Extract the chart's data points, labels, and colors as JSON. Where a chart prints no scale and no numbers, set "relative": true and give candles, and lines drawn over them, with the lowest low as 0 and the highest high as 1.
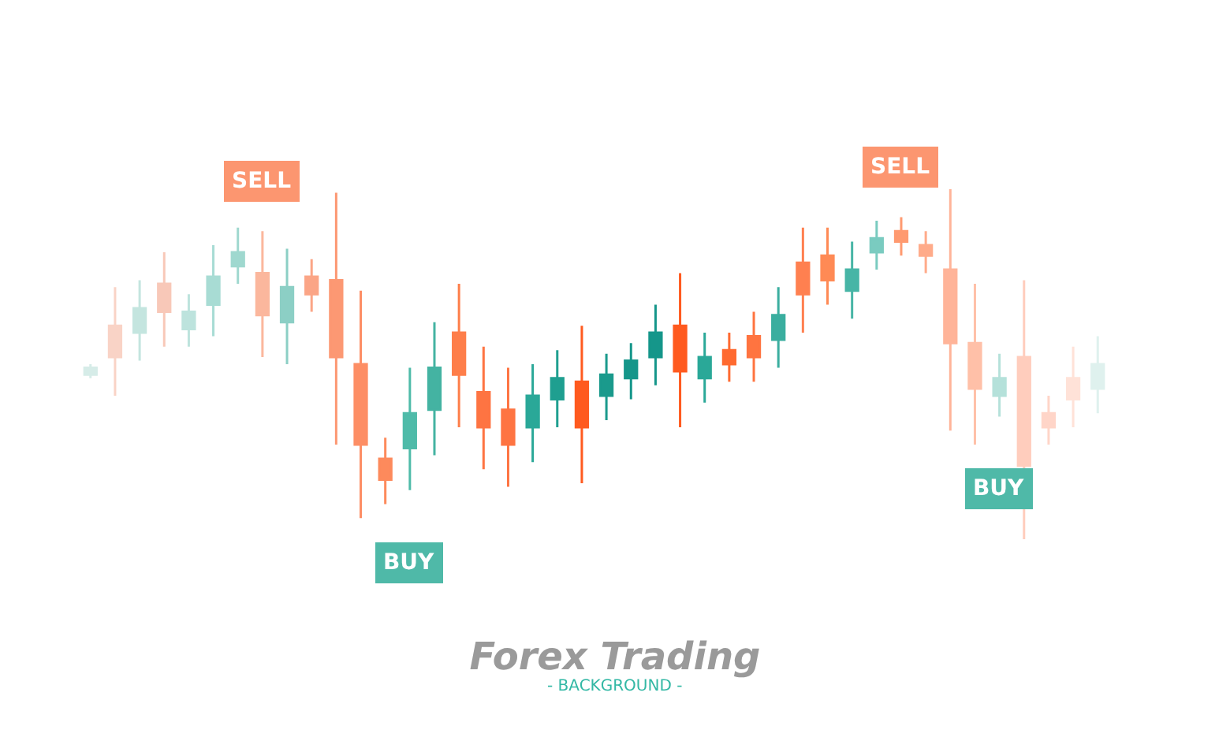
{
  "chart_data": {
    "type": "candlestick",
    "title": "Forex Trading",
    "subtitle": "- BACKGROUND -",
    "relative": true,
    "categories": [
      null,
      null,
      null,
      null,
      null,
      null,
      null,
      null,
      null,
      null,
      null,
      null,
      null,
      null,
      null,
      null,
      null,
      null,
      null,
      null,
      null,
      null,
      null,
      null,
      null,
      null,
      null,
      null,
      null,
      null,
      null,
      null,
      null,
      null,
      null,
      null,
      null,
      null,
      null,
      null,
      null,
      null
    ],
    "ohlc": [
      [
        0.47,
        0.5,
        0.46,
        0.49
      ],
      [
        0.61,
        0.72,
        0.41,
        0.52
      ],
      [
        0.59,
        0.74,
        0.51,
        0.66
      ],
      [
        0.73,
        0.82,
        0.55,
        0.65
      ],
      [
        0.6,
        0.7,
        0.55,
        0.65
      ],
      [
        0.67,
        0.84,
        0.58,
        0.75
      ],
      [
        0.78,
        0.89,
        0.73,
        0.82
      ],
      [
        0.76,
        0.88,
        0.52,
        0.64
      ],
      [
        0.62,
        0.83,
        0.5,
        0.72
      ],
      [
        0.75,
        0.8,
        0.65,
        0.7
      ],
      [
        0.74,
        0.99,
        0.27,
        0.52
      ],
      [
        0.5,
        0.71,
        0.06,
        0.27
      ],
      [
        0.23,
        0.29,
        0.1,
        0.17
      ],
      [
        0.26,
        0.49,
        0.14,
        0.36
      ],
      [
        0.37,
        0.62,
        0.24,
        0.49
      ],
      [
        0.59,
        0.73,
        0.32,
        0.47
      ],
      [
        0.42,
        0.55,
        0.2,
        0.32
      ],
      [
        0.37,
        0.49,
        0.15,
        0.27
      ],
      [
        0.32,
        0.5,
        0.22,
        0.41
      ],
      [
        0.4,
        0.54,
        0.32,
        0.46
      ],
      [
        0.45,
        0.61,
        0.16,
        0.32
      ],
      [
        0.41,
        0.53,
        0.34,
        0.47
      ],
      [
        0.46,
        0.56,
        0.4,
        0.51
      ],
      [
        0.52,
        0.67,
        0.44,
        0.59
      ],
      [
        0.61,
        0.76,
        0.32,
        0.48
      ],
      [
        0.46,
        0.59,
        0.39,
        0.52
      ],
      [
        0.54,
        0.59,
        0.45,
        0.5
      ],
      [
        0.58,
        0.65,
        0.45,
        0.52
      ],
      [
        0.57,
        0.72,
        0.49,
        0.64
      ],
      [
        0.79,
        0.89,
        0.59,
        0.7
      ],
      [
        0.81,
        0.89,
        0.67,
        0.74
      ],
      [
        0.71,
        0.85,
        0.63,
        0.77
      ],
      [
        0.82,
        0.91,
        0.77,
        0.86
      ],
      [
        0.88,
        0.92,
        0.81,
        0.85
      ],
      [
        0.84,
        0.88,
        0.76,
        0.81
      ],
      [
        0.77,
        1,
        0.31,
        0.56
      ],
      [
        0.56,
        0.73,
        0.27,
        0.43
      ],
      [
        0.41,
        0.53,
        0.35,
        0.46
      ],
      [
        0.52,
        0.74,
        0,
        0.21
      ],
      [
        0.36,
        0.41,
        0.27,
        0.32
      ],
      [
        0.46,
        0.55,
        0.32,
        0.4
      ],
      [
        0.43,
        0.58,
        0.36,
        0.5
      ]
    ],
    "colors": [
      "#d6ece8",
      "#f9d3c6",
      "#c4e5df",
      "#f8c8b8",
      "#bde3dd",
      "#a8dcd4",
      "#9fd8cf",
      "#fbb79d",
      "#8ccfc5",
      "#fba586",
      "#fc9873",
      "#fd8e65",
      "#fd8a5c",
      "#4fbba9",
      "#44b3a2",
      "#fe7e4a",
      "#fe7442",
      "#fe7442",
      "#2aa898",
      "#1f9f90",
      "#ff5a1f",
      "#1a9a8c",
      "#15968a",
      "#15968a",
      "#ff5a1f",
      "#2aa898",
      "#ff6a30",
      "#ff7440",
      "#3aae9f",
      "#ff8050",
      "#ff8a55",
      "#47b5a6",
      "#7acbc0",
      "#ff9a70",
      "#ffab8a",
      "#ffb499",
      "#ffc0a8",
      "#b5e1da",
      "#ffcdbd",
      "#ffd5c8",
      "#ffe2d8",
      "#dff1ee"
    ],
    "annotations": [
      {
        "text": "SELL",
        "y": 0.88
      },
      {
        "text": "BUY",
        "y": 0.14
      },
      {
        "text": "SELL",
        "y": 0.92
      },
      {
        "text": "BUY",
        "y": 0.35
      }
    ]
  }
}
